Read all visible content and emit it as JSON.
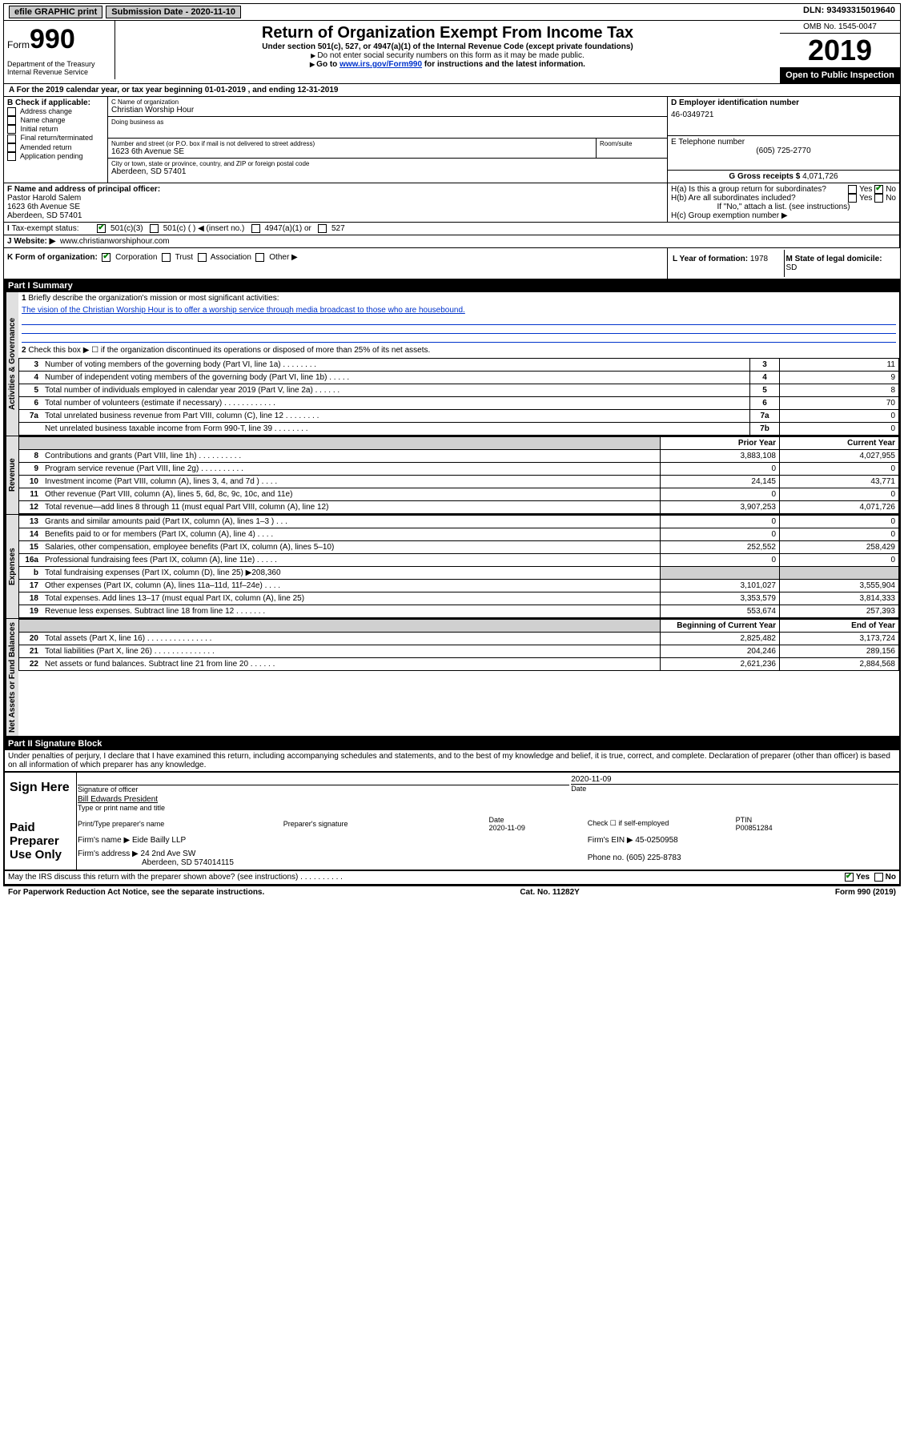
{
  "topbar": {
    "efile": "efile GRAPHIC print",
    "submission": "Submission Date - 2020-11-10",
    "dln": "DLN: 93493315019640"
  },
  "header": {
    "form_prefix": "Form",
    "form_number": "990",
    "title": "Return of Organization Exempt From Income Tax",
    "sub1": "Under section 501(c), 527, or 4947(a)(1) of the Internal Revenue Code (except private foundations)",
    "sub2": "Do not enter social security numbers on this form as it may be made public.",
    "sub3_pre": "Go to ",
    "sub3_link": "www.irs.gov/Form990",
    "sub3_post": " for instructions and the latest information.",
    "omb": "OMB No. 1545-0047",
    "year": "2019",
    "open": "Open to Public Inspection",
    "dept": "Department of the Treasury\nInternal Revenue Service"
  },
  "period": "For the 2019 calendar year, or tax year beginning 01-01-2019   , and ending 12-31-2019",
  "boxB": {
    "label": "B Check if applicable:",
    "items": [
      "Address change",
      "Name change",
      "Initial return",
      "Final return/terminated",
      "Amended return",
      "Application pending"
    ]
  },
  "boxC": {
    "name_label": "C Name of organization",
    "name": "Christian Worship Hour",
    "dba_label": "Doing business as",
    "addr_label": "Number and street (or P.O. box if mail is not delivered to street address)",
    "room_label": "Room/suite",
    "addr": "1623 6th Avenue SE",
    "city_label": "City or town, state or province, country, and ZIP or foreign postal code",
    "city": "Aberdeen, SD  57401"
  },
  "boxD": {
    "label": "D Employer identification number",
    "value": "46-0349721"
  },
  "boxE": {
    "label": "E Telephone number",
    "value": "(605) 725-2770"
  },
  "boxG": {
    "label": "G Gross receipts $",
    "value": "4,071,726"
  },
  "boxF": {
    "label": "F  Name and address of principal officer:",
    "name": "Pastor Harold Salem",
    "addr1": "1623 6th Avenue SE",
    "addr2": "Aberdeen, SD  57401"
  },
  "boxH": {
    "a": "H(a)  Is this a group return for subordinates?",
    "b": "H(b)  Are all subordinates included?",
    "b_note": "If \"No,\" attach a list. (see instructions)",
    "c": "H(c)  Group exemption number ▶"
  },
  "boxI": {
    "label": "Tax-exempt status:",
    "opts": [
      "501(c)(3)",
      "501(c) (  ) ◀ (insert no.)",
      "4947(a)(1) or",
      "527"
    ]
  },
  "boxJ": {
    "label": "Website: ▶",
    "value": "www.christianworshiphour.com"
  },
  "boxK": {
    "label": "K Form of organization:",
    "opts": [
      "Corporation",
      "Trust",
      "Association",
      "Other ▶"
    ]
  },
  "boxL": {
    "label": "L Year of formation:",
    "value": "1978"
  },
  "boxM": {
    "label": "M State of legal domicile:",
    "value": "SD"
  },
  "part1": {
    "title": "Part I     Summary",
    "q1": "Briefly describe the organization's mission or most significant activities:",
    "mission": "The vision of the Christian Worship Hour is to offer a worship service through media broadcast to those who are housebound.",
    "q2": "Check this box ▶ ☐  if the organization discontinued its operations or disposed of more than 25% of its net assets.",
    "sections": {
      "gov": "Activities & Governance",
      "rev": "Revenue",
      "exp": "Expenses",
      "net": "Net Assets or Fund Balances"
    },
    "rows_gov": [
      {
        "n": "3",
        "d": "Number of voting members of the governing body (Part VI, line 1a)  .   .   .   .   .   .   .   .",
        "c": "3",
        "v": "11"
      },
      {
        "n": "4",
        "d": "Number of independent voting members of the governing body (Part VI, line 1b)  .   .   .   .   .",
        "c": "4",
        "v": "9"
      },
      {
        "n": "5",
        "d": "Total number of individuals employed in calendar year 2019 (Part V, line 2a)  .   .   .   .   .   .",
        "c": "5",
        "v": "8"
      },
      {
        "n": "6",
        "d": "Total number of volunteers (estimate if necessary)  .   .   .   .   .   .   .   .   .   .   .   .",
        "c": "6",
        "v": "70"
      },
      {
        "n": "7a",
        "d": "Total unrelated business revenue from Part VIII, column (C), line 12  .   .   .   .   .   .   .   .",
        "c": "7a",
        "v": "0"
      },
      {
        "n": "",
        "d": "Net unrelated business taxable income from Form 990-T, line 39  .   .   .   .   .   .   .   .",
        "c": "7b",
        "v": "0"
      }
    ],
    "col_prior": "Prior Year",
    "col_current": "Current Year",
    "rows_rev": [
      {
        "n": "8",
        "d": "Contributions and grants (Part VIII, line 1h)  .   .   .   .   .   .   .   .   .   .",
        "p": "3,883,108",
        "c": "4,027,955"
      },
      {
        "n": "9",
        "d": "Program service revenue (Part VIII, line 2g)  .   .   .   .   .   .   .   .   .   .",
        "p": "0",
        "c": "0"
      },
      {
        "n": "10",
        "d": "Investment income (Part VIII, column (A), lines 3, 4, and 7d )  .   .   .   .",
        "p": "24,145",
        "c": "43,771"
      },
      {
        "n": "11",
        "d": "Other revenue (Part VIII, column (A), lines 5, 6d, 8c, 9c, 10c, and 11e)",
        "p": "0",
        "c": "0"
      },
      {
        "n": "12",
        "d": "Total revenue—add lines 8 through 11 (must equal Part VIII, column (A), line 12)",
        "p": "3,907,253",
        "c": "4,071,726"
      }
    ],
    "rows_exp": [
      {
        "n": "13",
        "d": "Grants and similar amounts paid (Part IX, column (A), lines 1–3 )  .   .   .",
        "p": "0",
        "c": "0"
      },
      {
        "n": "14",
        "d": "Benefits paid to or for members (Part IX, column (A), line 4)  .   .   .   .",
        "p": "0",
        "c": "0"
      },
      {
        "n": "15",
        "d": "Salaries, other compensation, employee benefits (Part IX, column (A), lines 5–10)",
        "p": "252,552",
        "c": "258,429"
      },
      {
        "n": "16a",
        "d": "Professional fundraising fees (Part IX, column (A), line 11e)  .   .   .   .   .",
        "p": "0",
        "c": "0"
      },
      {
        "n": "b",
        "d": "Total fundraising expenses (Part IX, column (D), line 25) ▶208,360",
        "p": "",
        "c": "",
        "shaded": true
      },
      {
        "n": "17",
        "d": "Other expenses (Part IX, column (A), lines 11a–11d, 11f–24e)  .   .   .   .",
        "p": "3,101,027",
        "c": "3,555,904"
      },
      {
        "n": "18",
        "d": "Total expenses. Add lines 13–17 (must equal Part IX, column (A), line 25)",
        "p": "3,353,579",
        "c": "3,814,333"
      },
      {
        "n": "19",
        "d": "Revenue less expenses. Subtract line 18 from line 12  .   .   .   .   .   .   .",
        "p": "553,674",
        "c": "257,393"
      }
    ],
    "col_begin": "Beginning of Current Year",
    "col_end": "End of Year",
    "rows_net": [
      {
        "n": "20",
        "d": "Total assets (Part X, line 16)  .   .   .   .   .   .   .   .   .   .   .   .   .   .   .",
        "p": "2,825,482",
        "c": "3,173,724"
      },
      {
        "n": "21",
        "d": "Total liabilities (Part X, line 26)  .   .   .   .   .   .   .   .   .   .   .   .   .   .",
        "p": "204,246",
        "c": "289,156"
      },
      {
        "n": "22",
        "d": "Net assets or fund balances. Subtract line 21 from line 20  .   .   .   .   .   .",
        "p": "2,621,236",
        "c": "2,884,568"
      }
    ]
  },
  "part2": {
    "title": "Part II     Signature Block",
    "perjury": "Under penalties of perjury, I declare that I have examined this return, including accompanying schedules and statements, and to the best of my knowledge and belief, it is true, correct, and complete. Declaration of preparer (other than officer) is based on all information of which preparer has any knowledge.",
    "sign_here": "Sign Here",
    "sig_officer": "Signature of officer",
    "sig_date": "2020-11-09",
    "date_label": "Date",
    "officer_name": "Bill Edwards  President",
    "name_label": "Type or print name and title",
    "paid": "Paid Preparer Use Only",
    "prep_name_label": "Print/Type preparer's name",
    "prep_sig_label": "Preparer's signature",
    "prep_date": "2020-11-09",
    "check_self": "Check ☐ if self-employed",
    "ptin_label": "PTIN",
    "ptin": "P00851284",
    "firm_name_label": "Firm's name    ▶",
    "firm_name": "Eide Bailly LLP",
    "firm_ein_label": "Firm's EIN ▶",
    "firm_ein": "45-0250958",
    "firm_addr_label": "Firm's address ▶",
    "firm_addr": "24 2nd Ave SW",
    "firm_city": "Aberdeen, SD  574014115",
    "phone_label": "Phone no.",
    "phone": "(605) 225-8783",
    "discuss": "May the IRS discuss this return with the preparer shown above? (see instructions)  .   .   .   .   .   .   .   .   .   .",
    "paperwork": "For Paperwork Reduction Act Notice, see the separate instructions.",
    "cat": "Cat. No. 11282Y",
    "form_foot": "Form 990 (2019)"
  }
}
